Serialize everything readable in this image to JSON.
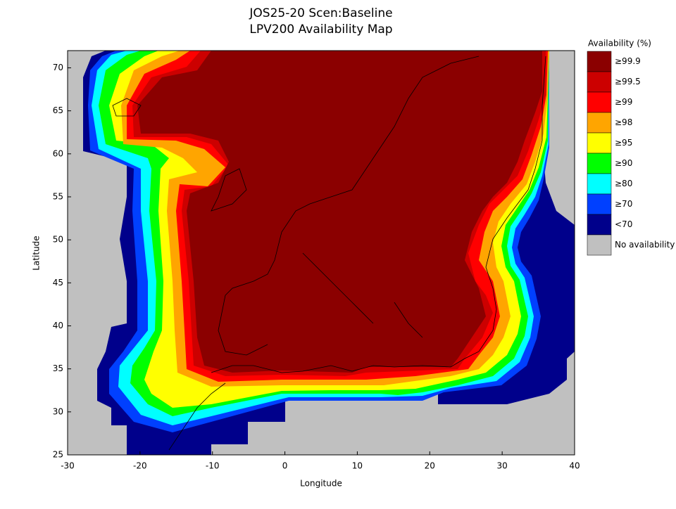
{
  "chart_data": {
    "type": "map",
    "title": [
      "JOS25-20 Scen:Baseline",
      "LPV200 Availability Map"
    ],
    "xlabel": "Longitude",
    "ylabel": "Latitude",
    "xlim": [
      -30,
      40
    ],
    "ylim": [
      25,
      72
    ],
    "xticks": [
      -30,
      -20,
      -10,
      0,
      10,
      20,
      30,
      40
    ],
    "yticks": [
      25,
      30,
      35,
      40,
      45,
      50,
      55,
      60,
      65,
      70
    ],
    "legend": {
      "title": "Availability (%)",
      "items": [
        {
          "label": "≥99.9",
          "color": "#8b0000"
        },
        {
          "label": "≥99.5",
          "color": "#cc0000"
        },
        {
          "label": "≥99",
          "color": "#ff0000"
        },
        {
          "label": "≥98",
          "color": "#ffa500"
        },
        {
          "label": "≥95",
          "color": "#ffff00"
        },
        {
          "label": "≥90",
          "color": "#00ff00"
        },
        {
          "label": "≥80",
          "color": "#00ffff"
        },
        {
          "label": "≥70",
          "color": "#0040ff"
        },
        {
          "label": "<70",
          "color": "#00008b"
        },
        {
          "label": "No availability",
          "color": "#c0c0c0"
        }
      ]
    }
  }
}
